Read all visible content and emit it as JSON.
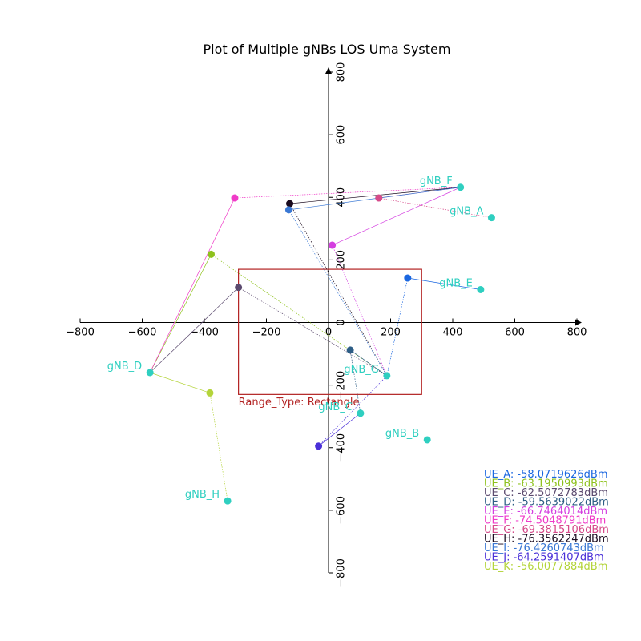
{
  "chart_data": {
    "type": "scatter",
    "title": "Plot of Multiple gNBs LOS Uma System",
    "xlim": [
      -800,
      800
    ],
    "ylim": [
      -800,
      800
    ],
    "xticks": [
      -800,
      -600,
      -400,
      -200,
      0,
      200,
      400,
      600,
      800
    ],
    "yticks": [
      -800,
      -600,
      -400,
      -200,
      0,
      200,
      400,
      600,
      800
    ],
    "tick_labels": [
      "−800",
      "−600",
      "−400",
      "−200",
      "0",
      "200",
      "400",
      "600",
      "800"
    ],
    "grid": false,
    "gnbs": [
      {
        "name": "gNB_A",
        "x": 525,
        "y": 335,
        "color": "#2fcfc0"
      },
      {
        "name": "gNB_B",
        "x": 318,
        "y": -375,
        "color": "#2fcfc0"
      },
      {
        "name": "gNB_C",
        "x": 103,
        "y": -290,
        "color": "#2fcfc0"
      },
      {
        "name": "gNB_D",
        "x": -575,
        "y": -160,
        "color": "#2fcfc0"
      },
      {
        "name": "gNB_E",
        "x": 490,
        "y": 105,
        "color": "#2fcfc0"
      },
      {
        "name": "gNB_F",
        "x": 425,
        "y": 432,
        "color": "#2fcfc0"
      },
      {
        "name": "gNB_G",
        "x": 188,
        "y": -170,
        "color": "#2fcfc0"
      },
      {
        "name": "gNB_H",
        "x": -325,
        "y": -570,
        "color": "#2fcfc0"
      }
    ],
    "ues": [
      {
        "name": "UE_A",
        "x": 255,
        "y": 142,
        "color": "#1b67e0",
        "rsrp": "UE_A: -58.0719626dBm",
        "links": [
          "gNB_E",
          "gNB_G"
        ],
        "style": [
          "solid",
          "dotted"
        ]
      },
      {
        "name": "UE_B",
        "x": -378,
        "y": 218,
        "color": "#8ec21c",
        "rsrp": "UE_B: -63.1950993dBm",
        "links": [
          "gNB_D",
          "gNB_G"
        ],
        "style": [
          "solid",
          "dotted"
        ]
      },
      {
        "name": "UE_C",
        "x": -290,
        "y": 112,
        "color": "#5b4a6e",
        "rsrp": "UE_C: -62.5072783dBm",
        "links": [
          "gNB_D",
          "gNB_G"
        ],
        "style": [
          "solid",
          "dotted"
        ]
      },
      {
        "name": "UE_D",
        "x": 70,
        "y": -88,
        "color": "#2d5d85",
        "rsrp": "UE_D: -59.5639022dBm",
        "links": [
          "gNB_G",
          "gNB_C"
        ],
        "style": [
          "solid",
          "dotted"
        ]
      },
      {
        "name": "UE_E",
        "x": 12,
        "y": 247,
        "color": "#d43ee0",
        "rsrp": "UE_E: -66.7464014dBm",
        "links": [
          "gNB_F",
          "gNB_G"
        ],
        "style": [
          "solid",
          "dotted"
        ]
      },
      {
        "name": "UE_F",
        "x": -302,
        "y": 398,
        "color": "#f03bc8",
        "rsrp": "UE_F: -74.5048791dBm",
        "links": [
          "gNB_D",
          "gNB_F"
        ],
        "style": [
          "solid",
          "dotted"
        ]
      },
      {
        "name": "UE_G",
        "x": 162,
        "y": 398,
        "color": "#d64a8a",
        "rsrp": "UE_G: -69.3815106dBm",
        "links": [
          "gNB_F",
          "gNB_A"
        ],
        "style": [
          "solid",
          "dotted"
        ]
      },
      {
        "name": "UE_H",
        "x": -125,
        "y": 380,
        "color": "#1a0a1e",
        "rsrp": "UE_H: -76.3562247dBm",
        "links": [
          "gNB_F",
          "gNB_G"
        ],
        "style": [
          "solid",
          "dotted"
        ]
      },
      {
        "name": "UE_I",
        "x": -128,
        "y": 360,
        "color": "#3a78d4",
        "rsrp": "UE_I: -76.4260743dBm",
        "links": [
          "gNB_F",
          "gNB_G"
        ],
        "style": [
          "solid",
          "dotted"
        ]
      },
      {
        "name": "UE_J",
        "x": -32,
        "y": -395,
        "color": "#4a30d8",
        "rsrp": "UE_J: -64.2591407dBm",
        "links": [
          "gNB_C",
          "gNB_G"
        ],
        "style": [
          "solid",
          "dotted"
        ]
      },
      {
        "name": "UE_K",
        "x": -382,
        "y": -225,
        "color": "#b4d43a",
        "rsrp": "UE_K: -56.0077884dBm",
        "links": [
          "gNB_D",
          "gNB_H"
        ],
        "style": [
          "solid",
          "dotted"
        ]
      }
    ],
    "range": {
      "label": "Range_Type: Rectangle",
      "x": [
        -290,
        300
      ],
      "y": [
        -230,
        170
      ],
      "color": "#b22222"
    }
  }
}
